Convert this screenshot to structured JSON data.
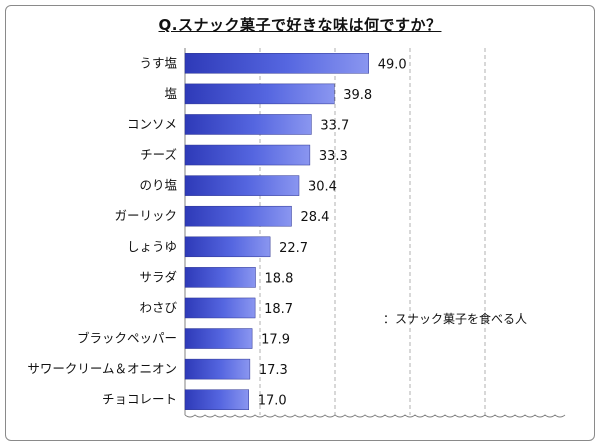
{
  "chart_data": {
    "type": "bar",
    "orientation": "horizontal",
    "title": "Q.スナック菓子で好きな味は何ですか？",
    "categories": [
      "うす塩",
      "塩",
      "コンソメ",
      "チーズ",
      "のり塩",
      "ガーリック",
      "しょうゆ",
      "サラダ",
      "わさび",
      "ブラックペッパー",
      "サワークリーム＆オニオン",
      "チョコレート"
    ],
    "values": [
      49.0,
      39.8,
      33.7,
      33.3,
      30.4,
      28.4,
      22.7,
      18.8,
      18.7,
      17.9,
      17.3,
      17.0
    ],
    "value_labels": [
      "49.0",
      "39.8",
      "33.7",
      "33.3",
      "30.4",
      "28.4",
      "22.7",
      "18.8",
      "18.7",
      "17.9",
      "17.3",
      "17.0"
    ],
    "xlim": [
      0,
      100
    ],
    "grid": "vertical dashed",
    "axis_break": true,
    "note": "：スナック菓子を食べる人",
    "bar_color": "#4a5ad8"
  }
}
